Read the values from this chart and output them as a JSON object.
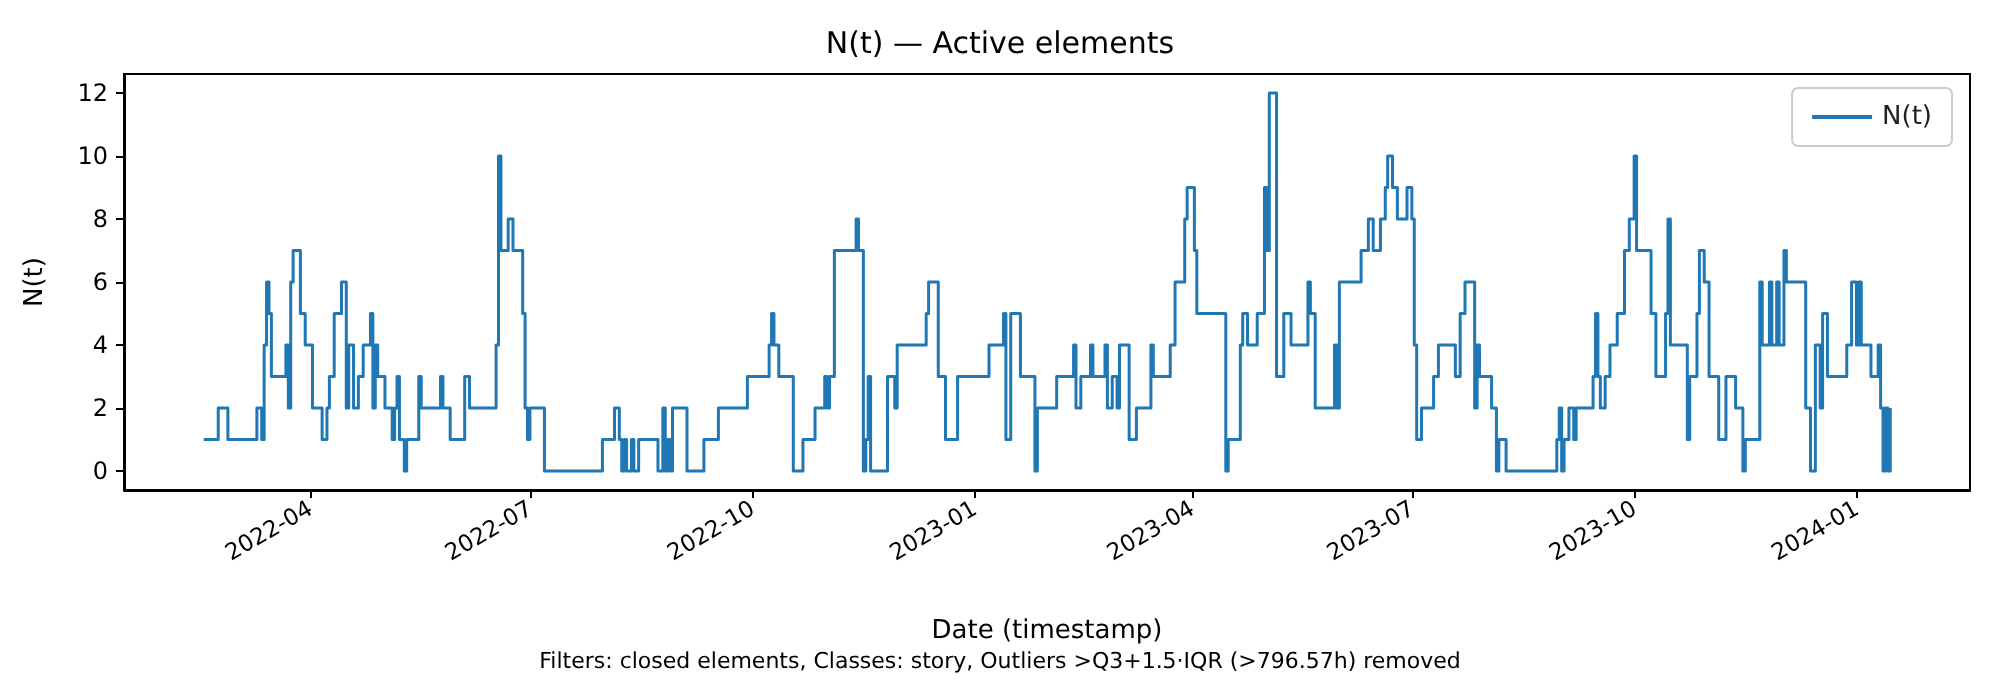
{
  "chart_data": {
    "type": "step",
    "title": "N(t) — Active elements",
    "xlabel": "Date (timestamp)",
    "ylabel": "N(t)",
    "annotations": [
      "Filters: closed elements, Classes: story, Outliers >Q3+1.5·IQR (>796.57h) removed"
    ],
    "xlim": [
      "2022-01-14",
      "2024-02-17"
    ],
    "xticks": [
      "2022-04",
      "2022-07",
      "2022-10",
      "2023-01",
      "2023-04",
      "2023-07",
      "2023-10",
      "2024-01"
    ],
    "ylim": [
      -0.6,
      12.6
    ],
    "yticks": [
      0,
      2,
      4,
      6,
      8,
      10,
      12
    ],
    "grid": false,
    "legend": "top right",
    "marker": "none",
    "line_style": "solid",
    "series": [
      {
        "name": "N(t)",
        "color": "#1f77b4",
        "x": [
          "2022-02-16",
          "2022-02-22",
          "2022-02-26",
          "2022-03-10",
          "2022-03-12",
          "2022-03-13",
          "2022-03-14",
          "2022-03-15",
          "2022-03-16",
          "2022-03-22",
          "2022-03-23",
          "2022-03-24",
          "2022-03-25",
          "2022-03-28",
          "2022-03-30",
          "2022-04-02",
          "2022-04-06",
          "2022-04-08",
          "2022-04-09",
          "2022-04-11",
          "2022-04-14",
          "2022-04-16",
          "2022-04-17",
          "2022-04-19",
          "2022-04-21",
          "2022-04-23",
          "2022-04-26",
          "2022-04-27",
          "2022-04-28",
          "2022-04-29",
          "2022-05-02",
          "2022-05-05",
          "2022-05-06",
          "2022-05-07",
          "2022-05-08",
          "2022-05-10",
          "2022-05-11",
          "2022-05-16",
          "2022-05-17",
          "2022-05-25",
          "2022-05-26",
          "2022-05-29",
          "2022-06-04",
          "2022-06-06",
          "2022-06-17",
          "2022-06-18",
          "2022-06-19",
          "2022-06-22",
          "2022-06-24",
          "2022-06-28",
          "2022-06-29",
          "2022-06-30",
          "2022-07-01",
          "2022-07-07",
          "2022-07-31",
          "2022-08-05",
          "2022-08-07",
          "2022-08-08",
          "2022-08-09",
          "2022-08-10",
          "2022-08-12",
          "2022-08-13",
          "2022-08-15",
          "2022-08-23",
          "2022-08-25",
          "2022-08-26",
          "2022-08-27",
          "2022-08-28",
          "2022-08-29",
          "2022-09-04",
          "2022-09-11",
          "2022-09-17",
          "2022-09-29",
          "2022-10-08",
          "2022-10-09",
          "2022-10-10",
          "2022-10-12",
          "2022-10-18",
          "2022-10-22",
          "2022-10-27",
          "2022-10-31",
          "2022-11-01",
          "2022-11-02",
          "2022-11-04",
          "2022-11-13",
          "2022-11-14",
          "2022-11-16",
          "2022-11-17",
          "2022-11-18",
          "2022-11-19",
          "2022-11-26",
          "2022-11-29",
          "2022-11-30",
          "2022-12-12",
          "2022-12-13",
          "2022-12-17",
          "2022-12-20",
          "2022-12-25",
          "2023-01-07",
          "2023-01-13",
          "2023-01-14",
          "2023-01-16",
          "2023-01-20",
          "2023-01-26",
          "2023-01-27",
          "2023-02-04",
          "2023-02-11",
          "2023-02-12",
          "2023-02-14",
          "2023-02-18",
          "2023-02-19",
          "2023-02-24",
          "2023-02-25",
          "2023-02-27",
          "2023-03-01",
          "2023-03-02",
          "2023-03-06",
          "2023-03-09",
          "2023-03-15",
          "2023-03-16",
          "2023-03-23",
          "2023-03-25",
          "2023-03-29",
          "2023-03-30",
          "2023-04-02",
          "2023-04-03",
          "2023-04-15",
          "2023-04-16",
          "2023-04-21",
          "2023-04-22",
          "2023-04-24",
          "2023-04-28",
          "2023-05-01",
          "2023-05-02",
          "2023-05-03",
          "2023-05-06",
          "2023-05-09",
          "2023-05-12",
          "2023-05-19",
          "2023-05-20",
          "2023-05-22",
          "2023-05-30",
          "2023-05-31",
          "2023-06-01",
          "2023-06-10",
          "2023-06-13",
          "2023-06-15",
          "2023-06-18",
          "2023-06-20",
          "2023-06-21",
          "2023-06-23",
          "2023-06-25",
          "2023-06-29",
          "2023-07-01",
          "2023-07-02",
          "2023-07-03",
          "2023-07-05",
          "2023-07-10",
          "2023-07-12",
          "2023-07-19",
          "2023-07-21",
          "2023-07-23",
          "2023-07-27",
          "2023-07-28",
          "2023-07-29",
          "2023-08-03",
          "2023-08-05",
          "2023-08-06",
          "2023-08-09",
          "2023-08-30",
          "2023-08-31",
          "2023-09-01",
          "2023-09-02",
          "2023-09-04",
          "2023-09-06",
          "2023-09-07",
          "2023-09-14",
          "2023-09-15",
          "2023-09-16",
          "2023-09-17",
          "2023-09-19",
          "2023-09-21",
          "2023-09-24",
          "2023-09-27",
          "2023-09-29",
          "2023-10-01",
          "2023-10-02",
          "2023-10-08",
          "2023-10-10",
          "2023-10-14",
          "2023-10-15",
          "2023-10-16",
          "2023-10-23",
          "2023-10-24",
          "2023-10-27",
          "2023-10-28",
          "2023-10-30",
          "2023-11-01",
          "2023-11-05",
          "2023-11-08",
          "2023-11-12",
          "2023-11-15",
          "2023-11-16",
          "2023-11-22",
          "2023-11-23",
          "2023-11-26",
          "2023-11-27",
          "2023-11-29",
          "2023-11-30",
          "2023-12-02",
          "2023-12-03",
          "2023-12-11",
          "2023-12-13",
          "2023-12-15",
          "2023-12-17",
          "2023-12-18",
          "2023-12-20",
          "2023-12-28",
          "2023-12-30",
          "2024-01-01",
          "2024-01-02",
          "2024-01-03",
          "2024-01-07",
          "2024-01-10",
          "2024-01-11",
          "2024-01-12",
          "2024-01-13",
          "2024-01-14",
          "2024-01-15"
        ],
        "values": [
          1,
          2,
          1,
          2,
          1,
          4,
          6,
          5,
          3,
          4,
          2,
          6,
          7,
          5,
          4,
          2,
          1,
          2,
          3,
          5,
          6,
          2,
          4,
          2,
          3,
          4,
          5,
          2,
          4,
          3,
          2,
          1,
          2,
          3,
          1,
          0,
          1,
          3,
          2,
          3,
          2,
          1,
          3,
          2,
          4,
          10,
          7,
          8,
          7,
          5,
          2,
          1,
          2,
          0,
          1,
          2,
          1,
          0,
          1,
          0,
          1,
          0,
          1,
          0,
          2,
          0,
          1,
          0,
          2,
          0,
          1,
          2,
          3,
          4,
          5,
          4,
          3,
          0,
          1,
          2,
          3,
          2,
          3,
          7,
          8,
          7,
          0,
          1,
          3,
          0,
          3,
          2,
          4,
          5,
          6,
          3,
          1,
          3,
          4,
          5,
          1,
          5,
          3,
          0,
          2,
          3,
          4,
          2,
          3,
          4,
          3,
          4,
          2,
          3,
          2,
          4,
          1,
          2,
          4,
          3,
          4,
          6,
          8,
          9,
          7,
          5,
          0,
          1,
          4,
          5,
          4,
          5,
          9,
          7,
          12,
          3,
          5,
          4,
          6,
          5,
          2,
          4,
          2,
          6,
          7,
          8,
          7,
          8,
          9,
          10,
          9,
          8,
          9,
          8,
          4,
          1,
          2,
          3,
          4,
          3,
          5,
          6,
          2,
          4,
          3,
          2,
          0,
          1,
          0,
          1,
          2,
          0,
          1,
          2,
          1,
          2,
          3,
          5,
          3,
          2,
          3,
          4,
          5,
          7,
          8,
          10,
          7,
          5,
          3,
          5,
          8,
          4,
          1,
          3,
          5,
          7,
          6,
          3,
          1,
          3,
          2,
          0,
          1,
          6,
          4,
          6,
          4,
          6,
          4,
          7,
          6,
          2,
          0,
          4,
          2,
          5,
          3,
          4,
          6,
          4,
          6,
          4,
          3,
          4,
          2,
          0,
          2,
          0,
          2
        ]
      }
    ]
  }
}
